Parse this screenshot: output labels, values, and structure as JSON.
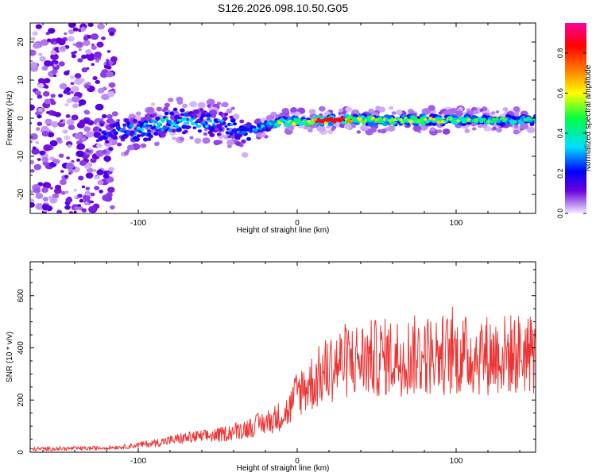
{
  "title": "S126.2026.098.10.50.G05",
  "chart_data": [
    {
      "id": "spectrogram",
      "type": "heatmap",
      "xlabel": "Height of straight line (km)",
      "ylabel": "Frequency (Hz)",
      "xlim": [
        -168,
        150
      ],
      "ylim": [
        -25,
        25
      ],
      "xticks": [
        -100,
        0,
        100
      ],
      "xtick_labels": [
        "-100",
        "0",
        "100"
      ],
      "yticks": [
        -20,
        -10,
        0,
        10,
        20
      ],
      "ytick_labels": [
        "-20",
        "-10",
        "0",
        "10",
        "20"
      ],
      "colorbar": {
        "label": "Normalized spectral amplitude",
        "range": [
          0.0,
          0.95
        ],
        "ticks": [
          0.0,
          0.2,
          0.4,
          0.6,
          0.8
        ],
        "tick_labels": [
          "0.0",
          "0.2",
          "0.4",
          "0.6",
          "0.8"
        ],
        "colors": [
          "#f4ecff",
          "#b987ef",
          "#6a00dc",
          "#0000ff",
          "#00e0ff",
          "#00ff40",
          "#ffff00",
          "#ff8000",
          "#ff0000",
          "#ff00a0"
        ]
      },
      "ridge": {
        "x": [
          -120,
          -100,
          -80,
          -60,
          -45,
          -35,
          -20,
          -10,
          0,
          20,
          40,
          60,
          80,
          100,
          120,
          150
        ],
        "freq": [
          -4,
          -3,
          -1,
          -1,
          -2,
          -4,
          -2,
          -1,
          -1,
          -0.5,
          -0.5,
          -0.5,
          -0.5,
          -0.5,
          -0.5,
          -0.5
        ],
        "peak_amplitude": [
          0.3,
          0.4,
          0.5,
          0.4,
          0.35,
          0.35,
          0.45,
          0.7,
          0.7,
          0.95,
          0.75,
          0.75,
          0.75,
          0.7,
          0.6,
          0.55
        ]
      },
      "noise_region_x": [
        -168,
        -120
      ]
    },
    {
      "id": "snr",
      "type": "line",
      "xlabel": "Height of straight line (km)",
      "ylabel": "SNR (10 * v/v)",
      "xlim": [
        -168,
        150
      ],
      "ylim": [
        0,
        730
      ],
      "xticks": [
        -100,
        0,
        100
      ],
      "xtick_labels": [
        "-100",
        "0",
        "100"
      ],
      "yticks": [
        0,
        200,
        400,
        600
      ],
      "ytick_labels": [
        "0",
        "200",
        "400",
        "600"
      ],
      "color": "#ee3333",
      "trend": {
        "x": [
          -168,
          -130,
          -110,
          -90,
          -70,
          -50,
          -30,
          -15,
          -5,
          0,
          10,
          20,
          30,
          50,
          70,
          90,
          110,
          130,
          150
        ],
        "snr": [
          12,
          15,
          20,
          35,
          55,
          65,
          95,
          125,
          160,
          230,
          270,
          320,
          350,
          360,
          370,
          375,
          370,
          375,
          380
        ]
      }
    }
  ]
}
